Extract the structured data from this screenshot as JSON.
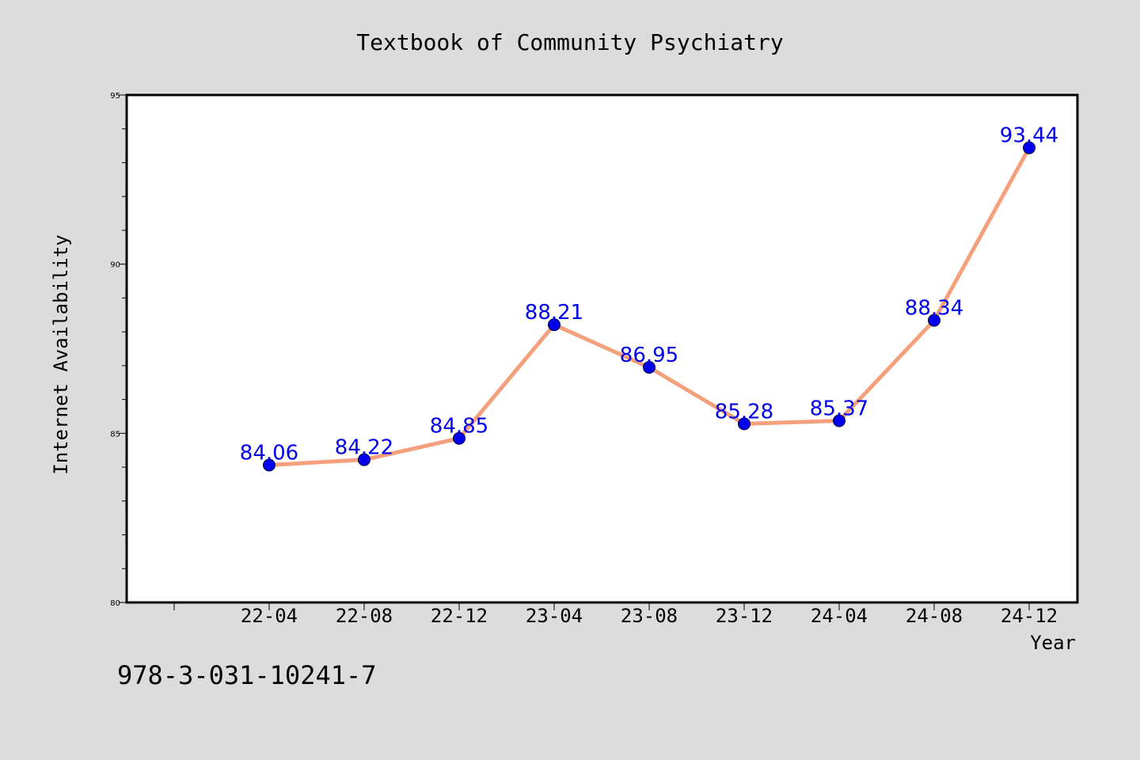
{
  "chart_data": {
    "type": "line",
    "title": "Textbook of Community Psychiatry",
    "xlabel": "Year",
    "ylabel": "Internet Availability",
    "categories": [
      "22-04",
      "22-08",
      "22-12",
      "23-04",
      "23-08",
      "23-12",
      "24-04",
      "24-08",
      "24-12"
    ],
    "series": [
      {
        "values": [
          84.06,
          84.22,
          84.85,
          88.21,
          86.95,
          85.28,
          85.37,
          88.34,
          93.44
        ]
      }
    ],
    "ylim": [
      80,
      95
    ],
    "yticks": [
      "80",
      "85",
      "90",
      "95"
    ],
    "grid": false,
    "legend": "none",
    "colors": {
      "line": "#f4a07c",
      "marker": "#0000ee",
      "label": "#0000ee",
      "background": "#dcdcdc",
      "plot": "#ffffff"
    }
  },
  "footer": {
    "isbn": "978-3-031-10241-7"
  }
}
